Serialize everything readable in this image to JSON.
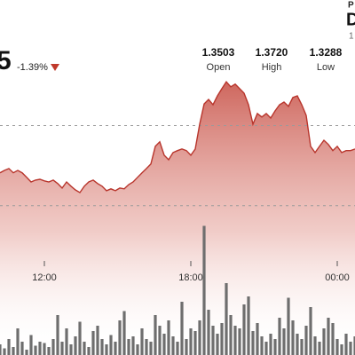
{
  "chart_data": {
    "type": "area",
    "price_fragment": "5",
    "change": "-1.39%",
    "stats": [
      {
        "value": "1.3503",
        "label": "Open"
      },
      {
        "value": "1.3720",
        "label": "High"
      },
      {
        "value": "1.3288",
        "label": "Low"
      }
    ],
    "corner_texts": [
      "P",
      "D",
      "1"
    ],
    "xlim": [
      0,
      80
    ],
    "xticks": [
      {
        "value": 10,
        "label": "12:00"
      },
      {
        "value": 43,
        "label": "18:00"
      },
      {
        "value": 76,
        "label": "00:00"
      }
    ],
    "ylim": [
      1.3,
      1.4
    ],
    "yticks": [
      1.355,
      1.325
    ],
    "grid": true,
    "y2lim": [
      0,
      100
    ],
    "series": [
      {
        "color": "#b8352c",
        "values": [
          1.3373,
          1.3382,
          1.3389,
          1.3373,
          1.3382,
          1.3373,
          1.3356,
          1.3339,
          1.3346,
          1.3349,
          1.3343,
          1.3339,
          1.3346,
          1.3333,
          1.3316,
          1.3339,
          1.3323,
          1.3309,
          1.3299,
          1.3323,
          1.3339,
          1.3346,
          1.3333,
          1.3323,
          1.3306,
          1.3313,
          1.3306,
          1.3316,
          1.3313,
          1.3329,
          1.3339,
          1.3356,
          1.3373,
          1.3389,
          1.3406,
          1.3472,
          1.3489,
          1.3439,
          1.3422,
          1.3449,
          1.3456,
          1.3462,
          1.3456,
          1.3439,
          1.3462,
          1.3555,
          1.3631,
          1.3648,
          1.3628,
          1.3661,
          1.3688,
          1.3714,
          1.3695,
          1.3705,
          1.3688,
          1.3671,
          1.3628,
          1.3555,
          1.3595,
          1.3582,
          1.3595,
          1.3578,
          1.3605,
          1.3628,
          1.3638,
          1.3622,
          1.3655,
          1.3661,
          1.3628,
          1.3588,
          1.3472,
          1.3449,
          1.3472,
          1.3495,
          1.3479,
          1.3456,
          1.3472,
          1.3449,
          1.3456,
          1.3456,
          1.3462
        ]
      },
      {
        "color": "#6e6e6e",
        "axis": "y2",
        "values": [
          8,
          5,
          12,
          6,
          20,
          10,
          4,
          15,
          7,
          10,
          9,
          6,
          12,
          30,
          10,
          20,
          8,
          14,
          25,
          10,
          6,
          18,
          22,
          12,
          8,
          15,
          10,
          26,
          33,
          12,
          14,
          8,
          20,
          12,
          10,
          30,
          22,
          16,
          26,
          14,
          10,
          40,
          12,
          20,
          18,
          26,
          97,
          34,
          22,
          16,
          24,
          54,
          30,
          22,
          20,
          38,
          44,
          18,
          24,
          14,
          10,
          16,
          12,
          28,
          20,
          43,
          26,
          16,
          12,
          22,
          36,
          14,
          10,
          20,
          28,
          24,
          12,
          8,
          16,
          10,
          14
        ]
      }
    ]
  }
}
